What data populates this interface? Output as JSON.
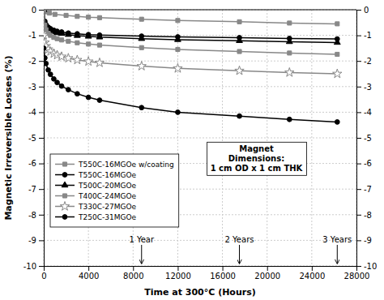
{
  "chart_data": {
    "type": "line",
    "xlabel": "Time at 300°C (Hours)",
    "ylabel": "Magnetic Irreversible Losses (%)",
    "xlim": [
      0,
      28000
    ],
    "xticks": [
      0,
      4000,
      8000,
      12000,
      16000,
      20000,
      24000,
      28000
    ],
    "ylim": [
      -10,
      0
    ],
    "yticks": [
      0,
      -1,
      -2,
      -3,
      -4,
      -5,
      -6,
      -7,
      -8,
      -9,
      -10
    ],
    "y2lim": [
      -10,
      0
    ],
    "y2ticks": [
      0,
      -1,
      -2,
      -3,
      -4,
      -5,
      -6,
      -7,
      -8,
      -9,
      -10
    ],
    "grid": true,
    "legend": "lower left",
    "annotations": [
      {
        "text": "1 Year",
        "x": 8760
      },
      {
        "text": "2 Years",
        "x": 17520
      },
      {
        "text": "3 Years",
        "x": 26280
      },
      {
        "text": "Magnet\nDimensions:\n1 cm OD x 1 cm THK"
      }
    ],
    "series": [
      {
        "name": "T550C-16MGOe w/coating",
        "color": "#888888",
        "marker": "square",
        "x": [
          0,
          200,
          500,
          1000,
          2000,
          3000,
          4000,
          5000,
          8760,
          12000,
          17520,
          22000,
          26280
        ],
        "values": [
          0,
          -0.08,
          -0.13,
          -0.18,
          -0.22,
          -0.26,
          -0.29,
          -0.31,
          -0.37,
          -0.42,
          -0.47,
          -0.52,
          -0.55
        ]
      },
      {
        "name": "T550C-16MGOe",
        "color": "#000000",
        "marker": "circle",
        "x": [
          0,
          100,
          200,
          400,
          600,
          900,
          1200,
          1600,
          2200,
          3000,
          4000,
          5000,
          8760,
          12000,
          17520,
          22000,
          26280
        ],
        "values": [
          0,
          -0.45,
          -0.58,
          -0.68,
          -0.74,
          -0.8,
          -0.84,
          -0.87,
          -0.91,
          -0.94,
          -0.97,
          -0.99,
          -1.03,
          -1.06,
          -1.09,
          -1.12,
          -1.14
        ]
      },
      {
        "name": "T500C-20MGOe",
        "color": "#000000",
        "marker": "triangle",
        "x": [
          0,
          100,
          200,
          400,
          600,
          900,
          1200,
          1600,
          2200,
          3000,
          4000,
          5000,
          8760,
          12000,
          17520,
          22000,
          26280
        ],
        "values": [
          0,
          -0.5,
          -0.63,
          -0.74,
          -0.8,
          -0.86,
          -0.9,
          -0.93,
          -0.97,
          -1.01,
          -1.04,
          -1.07,
          -1.13,
          -1.17,
          -1.21,
          -1.25,
          -1.28
        ]
      },
      {
        "name": "T400C-24MGOe",
        "color": "#888888",
        "marker": "square",
        "x": [
          0,
          100,
          200,
          400,
          600,
          900,
          1200,
          1600,
          2200,
          3000,
          4000,
          5000,
          8760,
          12000,
          17520,
          22000,
          26280
        ],
        "values": [
          0,
          -0.6,
          -0.78,
          -0.92,
          -1.0,
          -1.08,
          -1.13,
          -1.18,
          -1.23,
          -1.29,
          -1.34,
          -1.38,
          -1.48,
          -1.55,
          -1.63,
          -1.69,
          -1.74
        ]
      },
      {
        "name": "T330C-27MGOe",
        "color": "#888888",
        "marker": "star",
        "x": [
          0,
          100,
          200,
          400,
          600,
          900,
          1200,
          1600,
          2200,
          3000,
          4000,
          5000,
          8760,
          12000,
          17520,
          22000,
          26280
        ],
        "values": [
          -1.0,
          -1.28,
          -1.42,
          -1.55,
          -1.63,
          -1.71,
          -1.77,
          -1.83,
          -1.89,
          -1.96,
          -2.02,
          -2.07,
          -2.2,
          -2.29,
          -2.38,
          -2.45,
          -2.5
        ]
      },
      {
        "name": "T250C-31MGOe",
        "color": "#000000",
        "marker": "circle",
        "x": [
          0,
          100,
          200,
          400,
          600,
          900,
          1200,
          1600,
          2200,
          3000,
          4000,
          5000,
          8760,
          12000,
          17520,
          22000,
          26280
        ],
        "values": [
          -1.5,
          -1.88,
          -2.1,
          -2.35,
          -2.52,
          -2.7,
          -2.84,
          -2.98,
          -3.12,
          -3.28,
          -3.42,
          -3.53,
          -3.82,
          -4.0,
          -4.15,
          -4.28,
          -4.38
        ]
      }
    ]
  }
}
